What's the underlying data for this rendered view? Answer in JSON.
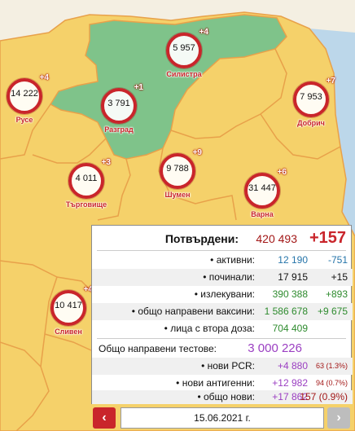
{
  "map": {
    "colors": {
      "water": "#bcd7ea",
      "region_default": "#f5d16a",
      "region_low": "#7fc38a",
      "border": "#e8a14a",
      "marker_ring": "#c9252b"
    },
    "regions": [
      {
        "name": "Русе",
        "cases": "14 222",
        "delta": "+4"
      },
      {
        "name": "Силистра",
        "cases": "5 957",
        "delta": "+4"
      },
      {
        "name": "Разград",
        "cases": "3 791",
        "delta": "+1"
      },
      {
        "name": "Добрич",
        "cases": "7 953",
        "delta": "+7"
      },
      {
        "name": "Търговище",
        "cases": "4 011",
        "delta": "+3"
      },
      {
        "name": "Шумен",
        "cases": "9 788",
        "delta": "+9"
      },
      {
        "name": "Варна",
        "cases": "31 447",
        "delta": "+6"
      },
      {
        "name": "Сливен",
        "cases": "10 417",
        "delta": "+4"
      }
    ]
  },
  "stats": {
    "confirmed_label": "Потвърдени:",
    "confirmed_value": "420 493",
    "confirmed_delta": "+157",
    "active_label": "• активни:",
    "active_value": "12 190",
    "active_delta": "-751",
    "deaths_label": "• починали:",
    "deaths_value": "17 915",
    "deaths_delta": "+15",
    "recovered_label": "• излекувани:",
    "recovered_value": "390 388",
    "recovered_delta": "+893",
    "vaccines_label": "• общо направени ваксини:",
    "vaccines_value": "1 586 678",
    "vaccines_delta": "+9 675",
    "second_dose_label": "• лица с втора доза:",
    "second_dose_value": "704 409",
    "tests_label": "Общо направени тестове:",
    "tests_value": "3 000 226",
    "pcr_label": "• нови PCR:",
    "pcr_value": "+4 880",
    "pcr_pct": "63 (1.3%)",
    "antigen_label": "• нови антигенни:",
    "antigen_value": "+12 982",
    "antigen_pct": "94 (0.7%)",
    "total_new_label": "• общо нови:",
    "total_new_value": "+17 862",
    "total_new_pct": "157 (0.9%)"
  },
  "nav": {
    "prev_icon": "‹",
    "next_icon": "›",
    "date": "15.06.2021 г."
  }
}
